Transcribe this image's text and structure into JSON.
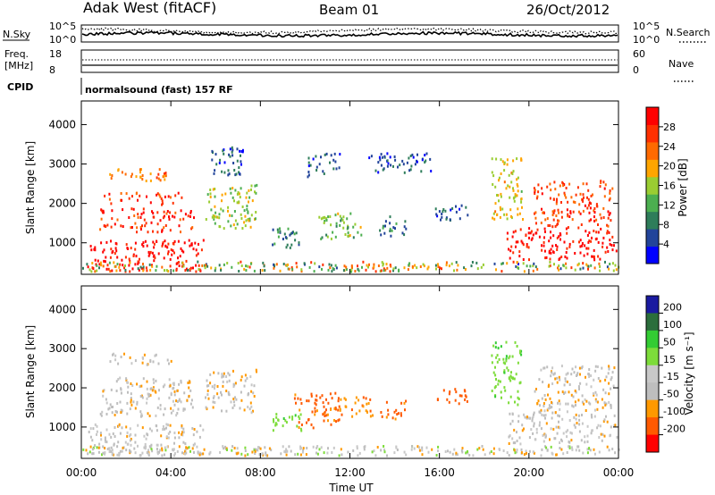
{
  "header": {
    "site": "Adak West (fitACF)",
    "beam": "Beam 01",
    "date": "26/Oct/2012"
  },
  "top_panels": {
    "nsky_label": "N.Sky",
    "nsky_ticks": [
      "10^5",
      "10^0"
    ],
    "nsearch_label": "N.Search",
    "nsearch_ticks": [
      "10^5",
      "10^0"
    ],
    "freq_label": "Freq.",
    "freq_unit": "[MHz]",
    "freq_ticks": [
      "18",
      "8"
    ],
    "nave_label": "Nave",
    "nave_ticks": [
      "60",
      "0"
    ],
    "cpid_label": "CPID",
    "cpid_text": "normalsound (fast) 157 RF"
  },
  "colors": {
    "power_scale": [
      "#0000ff",
      "#22449a",
      "#2e7d5a",
      "#4caf50",
      "#9acd32",
      "#ffa500",
      "#ff6a00",
      "#ff3000",
      "#ff0000"
    ],
    "velocity_scale": [
      "#1a1aa0",
      "#2b6e3c",
      "#33cc33",
      "#7ddc3a",
      "#c8c8c8",
      "#bebebe",
      "#ff9900",
      "#ff5a00",
      "#ff0000"
    ]
  },
  "chart_data": [
    {
      "type": "heatmap",
      "name": "power",
      "ylabel": "Slant Range [km]",
      "yticks": [
        "1000",
        "2000",
        "3000",
        "4000"
      ],
      "ylim": [
        200,
        4600
      ],
      "colorbar_label": "Power [dB]",
      "colorbar_ticks": [
        "4",
        "8",
        "12",
        "16",
        "20",
        "24",
        "28"
      ],
      "colorbar_range": [
        0,
        32
      ],
      "regions": [
        {
          "t0": 0.3,
          "t1": 5.5,
          "r0": 300,
          "r1": 1100,
          "level": 30
        },
        {
          "t0": 0.8,
          "t1": 5.0,
          "r0": 1300,
          "r1": 1900,
          "level": 28
        },
        {
          "t0": 1.0,
          "t1": 4.5,
          "r0": 2000,
          "r1": 2300,
          "level": 26
        },
        {
          "t0": 1.2,
          "t1": 4.0,
          "r0": 2600,
          "r1": 2900,
          "level": 22
        },
        {
          "t0": 5.5,
          "t1": 7.8,
          "r0": 1400,
          "r1": 2500,
          "level": 16
        },
        {
          "t0": 5.8,
          "t1": 7.2,
          "r0": 2700,
          "r1": 3500,
          "level": 6
        },
        {
          "t0": 8.5,
          "t1": 9.8,
          "r0": 900,
          "r1": 1400,
          "level": 8
        },
        {
          "t0": 10.0,
          "t1": 11.6,
          "r0": 2700,
          "r1": 3300,
          "level": 6
        },
        {
          "t0": 10.5,
          "t1": 12.5,
          "r0": 1100,
          "r1": 1800,
          "level": 14
        },
        {
          "t0": 12.8,
          "t1": 15.6,
          "r0": 2800,
          "r1": 3300,
          "level": 5
        },
        {
          "t0": 13.3,
          "t1": 14.5,
          "r0": 1200,
          "r1": 1700,
          "level": 8
        },
        {
          "t0": 15.8,
          "t1": 17.3,
          "r0": 1600,
          "r1": 2000,
          "level": 6
        },
        {
          "t0": 18.3,
          "t1": 19.7,
          "r0": 1600,
          "r1": 3200,
          "level": 18
        },
        {
          "t0": 19.0,
          "t1": 24.0,
          "r0": 600,
          "r1": 1400,
          "level": 30
        },
        {
          "t0": 20.2,
          "t1": 23.8,
          "r0": 1400,
          "r1": 2600,
          "level": 26
        }
      ]
    },
    {
      "type": "heatmap",
      "name": "velocity",
      "ylabel": "Slant Range [km]",
      "yticks": [
        "1000",
        "2000",
        "3000",
        "4000"
      ],
      "ylim": [
        200,
        4600
      ],
      "colorbar_label": "Velocity [m s⁻¹]",
      "colorbar_ticks": [
        "200",
        "100",
        "50",
        "15",
        "-15",
        "-50",
        "-100",
        "-200"
      ],
      "regions": [
        {
          "t0": 0.3,
          "t1": 5.5,
          "r0": 300,
          "r1": 1100,
          "v": -5
        },
        {
          "t0": 0.8,
          "t1": 5.0,
          "r0": 1300,
          "r1": 2300,
          "v": -8
        },
        {
          "t0": 1.2,
          "t1": 4.0,
          "r0": 2600,
          "r1": 2900,
          "v": -6
        },
        {
          "t0": 5.5,
          "t1": 7.8,
          "r0": 1400,
          "r1": 2500,
          "v": -10
        },
        {
          "t0": 8.5,
          "t1": 9.8,
          "r0": 900,
          "r1": 1400,
          "v": 40
        },
        {
          "t0": 9.5,
          "t1": 11.5,
          "r0": 1000,
          "r1": 1900,
          "v": -60
        },
        {
          "t0": 11.5,
          "t1": 13.0,
          "r0": 1300,
          "r1": 1800,
          "v": -40
        },
        {
          "t0": 13.3,
          "t1": 14.5,
          "r0": 1200,
          "r1": 1700,
          "v": -60
        },
        {
          "t0": 15.8,
          "t1": 17.3,
          "r0": 1600,
          "r1": 2000,
          "v": -80
        },
        {
          "t0": 18.3,
          "t1": 19.7,
          "r0": 1600,
          "r1": 3200,
          "v": 40
        },
        {
          "t0": 19.0,
          "t1": 24.0,
          "r0": 600,
          "r1": 1400,
          "v": -5
        },
        {
          "t0": 20.2,
          "t1": 23.8,
          "r0": 1400,
          "r1": 2600,
          "v": -10
        }
      ]
    }
  ],
  "x_axis": {
    "label": "Time UT",
    "ticks": [
      "00:00",
      "04:00",
      "08:00",
      "12:00",
      "16:00",
      "20:00",
      "00:00"
    ],
    "range_hours": [
      0,
      24
    ]
  }
}
